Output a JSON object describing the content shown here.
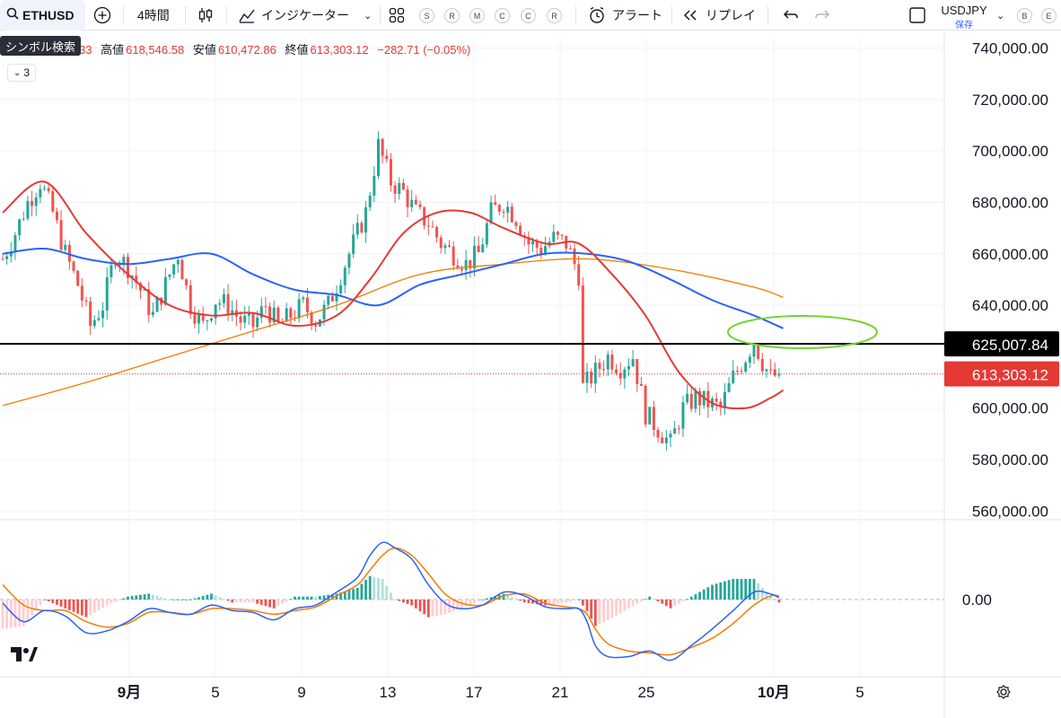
{
  "toolbar": {
    "symbol": "ETHUSD",
    "interval": "4時間",
    "indicators_label": "インジケーター",
    "study_badges": [
      "S",
      "R",
      "M",
      "C",
      "C",
      "R"
    ],
    "alert_label": "アラート",
    "replay_label": "リプレイ",
    "right_symbol": "USDJPY",
    "right_save_label": "保存",
    "right_badges": [
      "B",
      "E"
    ]
  },
  "tooltip": "シンボル検索",
  "legend": {
    "open_tail": "33",
    "high_label": "高値",
    "high": "618,546.58",
    "low_label": "安値",
    "low": "610,472.86",
    "close_label": "終値",
    "close": "613,303.12",
    "change": "−282.71 (−0.05%)",
    "collapsed_count": "3"
  },
  "chart_data": {
    "type": "candlestick",
    "title": "",
    "interval": "4時間",
    "y_ticks": [
      740000,
      720000,
      700000,
      680000,
      660000,
      640000,
      600000,
      580000,
      560000
    ],
    "y_tick_labels": [
      "740,000.00",
      "720,000.00",
      "700,000.00",
      "680,000.00",
      "660,000.00",
      "640,000.00",
      "600,000.00",
      "580,000.00",
      "560,000.00"
    ],
    "ylim": [
      557000,
      744000
    ],
    "x_tick_labels": [
      "9月",
      "5",
      "9",
      "13",
      "17",
      "21",
      "25",
      "10月",
      "5"
    ],
    "x_tick_bold": [
      true,
      false,
      false,
      false,
      false,
      false,
      false,
      true,
      false
    ],
    "horizontal_line": {
      "value": 625007.84,
      "label": "625,007.84",
      "color": "#000000"
    },
    "last_price": {
      "value": 613303.12,
      "label": "613,303.12",
      "color": "#e53935"
    },
    "close_path": [
      [
        0,
        658000
      ],
      [
        3,
        668000
      ],
      [
        6,
        680000
      ],
      [
        9,
        688000
      ],
      [
        12,
        676000
      ],
      [
        15,
        660000
      ],
      [
        18,
        648000
      ],
      [
        21,
        632000
      ],
      [
        24,
        640000
      ],
      [
        27,
        660000
      ],
      [
        30,
        655000
      ],
      [
        33,
        646000
      ],
      [
        36,
        636000
      ],
      [
        39,
        648000
      ],
      [
        42,
        660000
      ],
      [
        45,
        640000
      ],
      [
        48,
        632000
      ],
      [
        51,
        642000
      ],
      [
        54,
        640000
      ],
      [
        57,
        634000
      ],
      [
        60,
        632000
      ],
      [
        63,
        640000
      ],
      [
        66,
        632000
      ],
      [
        69,
        636000
      ],
      [
        72,
        640000
      ],
      [
        75,
        634000
      ],
      [
        78,
        640000
      ],
      [
        81,
        652000
      ],
      [
        84,
        664000
      ],
      [
        87,
        676000
      ],
      [
        90,
        702000
      ],
      [
        93,
        688000
      ],
      [
        96,
        684000
      ],
      [
        99,
        676000
      ],
      [
        102,
        672000
      ],
      [
        105,
        664000
      ],
      [
        108,
        660000
      ],
      [
        111,
        656000
      ],
      [
        114,
        660000
      ],
      [
        117,
        676000
      ],
      [
        120,
        680000
      ],
      [
        123,
        674000
      ],
      [
        126,
        664000
      ],
      [
        129,
        662000
      ],
      [
        132,
        666000
      ],
      [
        135,
        664000
      ],
      [
        138,
        652000
      ],
      [
        139,
        608000
      ],
      [
        142,
        614000
      ],
      [
        145,
        620000
      ],
      [
        148,
        616000
      ],
      [
        151,
        620000
      ],
      [
        154,
        598000
      ],
      [
        157,
        592000
      ],
      [
        160,
        586000
      ],
      [
        163,
        600000
      ],
      [
        166,
        604000
      ],
      [
        169,
        602000
      ],
      [
        172,
        600000
      ],
      [
        175,
        612000
      ],
      [
        178,
        620000
      ],
      [
        180,
        626000
      ],
      [
        182,
        618000
      ],
      [
        184,
        612000
      ],
      [
        186,
        613300
      ]
    ],
    "ma_red": [
      [
        0,
        676000
      ],
      [
        10,
        688000
      ],
      [
        20,
        668000
      ],
      [
        30,
        652000
      ],
      [
        40,
        640000
      ],
      [
        50,
        636000
      ],
      [
        60,
        637000
      ],
      [
        70,
        632000
      ],
      [
        80,
        636000
      ],
      [
        88,
        650000
      ],
      [
        96,
        668000
      ],
      [
        104,
        676000
      ],
      [
        112,
        676000
      ],
      [
        120,
        670000
      ],
      [
        130,
        664000
      ],
      [
        138,
        664000
      ],
      [
        146,
        652000
      ],
      [
        154,
        636000
      ],
      [
        162,
        614000
      ],
      [
        170,
        602000
      ],
      [
        178,
        600000
      ],
      [
        184,
        604000
      ],
      [
        187,
        607000
      ]
    ],
    "ma_blue": [
      [
        0,
        660000
      ],
      [
        10,
        662000
      ],
      [
        20,
        658000
      ],
      [
        30,
        656000
      ],
      [
        40,
        658000
      ],
      [
        50,
        660000
      ],
      [
        60,
        652000
      ],
      [
        70,
        646000
      ],
      [
        80,
        644000
      ],
      [
        90,
        640000
      ],
      [
        100,
        648000
      ],
      [
        110,
        652000
      ],
      [
        120,
        656000
      ],
      [
        130,
        660000
      ],
      [
        140,
        660000
      ],
      [
        150,
        657000
      ],
      [
        160,
        650000
      ],
      [
        170,
        642000
      ],
      [
        180,
        636000
      ],
      [
        187,
        631000
      ]
    ],
    "ma_orange": [
      [
        0,
        601000
      ],
      [
        20,
        610000
      ],
      [
        40,
        620000
      ],
      [
        60,
        630000
      ],
      [
        80,
        640000
      ],
      [
        100,
        652000
      ],
      [
        120,
        656000
      ],
      [
        140,
        658000
      ],
      [
        160,
        654000
      ],
      [
        180,
        647000
      ],
      [
        187,
        643000
      ]
    ],
    "series_colors": {
      "red": "#e53935",
      "blue": "#2962ff",
      "orange": "#f57c00",
      "candle_up": "#26a69a",
      "candle_down": "#ef5350"
    },
    "annotation": {
      "type": "ellipse",
      "color": "#76d436"
    },
    "macd": {
      "zero_label": "0.00",
      "macd_line": [
        [
          0,
          -2
        ],
        [
          5,
          -12
        ],
        [
          10,
          -6
        ],
        [
          15,
          -9
        ],
        [
          20,
          -18
        ],
        [
          25,
          -17
        ],
        [
          30,
          -12
        ],
        [
          35,
          -5
        ],
        [
          40,
          -7
        ],
        [
          45,
          -8
        ],
        [
          50,
          -3
        ],
        [
          55,
          -6
        ],
        [
          60,
          -7
        ],
        [
          65,
          -11
        ],
        [
          70,
          -5
        ],
        [
          75,
          -3
        ],
        [
          80,
          4
        ],
        [
          85,
          12
        ],
        [
          88,
          24
        ],
        [
          91,
          31
        ],
        [
          94,
          28
        ],
        [
          98,
          22
        ],
        [
          102,
          8
        ],
        [
          106,
          -2
        ],
        [
          110,
          -5
        ],
        [
          115,
          -3
        ],
        [
          120,
          4
        ],
        [
          125,
          2
        ],
        [
          130,
          -4
        ],
        [
          135,
          -5
        ],
        [
          138,
          -5
        ],
        [
          140,
          -12
        ],
        [
          142,
          -25
        ],
        [
          145,
          -31
        ],
        [
          150,
          -31
        ],
        [
          155,
          -28
        ],
        [
          160,
          -33
        ],
        [
          165,
          -25
        ],
        [
          170,
          -16
        ],
        [
          175,
          -6
        ],
        [
          180,
          4
        ],
        [
          184,
          3
        ],
        [
          186,
          1
        ]
      ],
      "signal_line": [
        [
          0,
          8
        ],
        [
          5,
          -3
        ],
        [
          10,
          -6
        ],
        [
          15,
          -6
        ],
        [
          20,
          -12
        ],
        [
          25,
          -15
        ],
        [
          30,
          -13
        ],
        [
          35,
          -7
        ],
        [
          40,
          -7
        ],
        [
          45,
          -8
        ],
        [
          50,
          -5
        ],
        [
          55,
          -5
        ],
        [
          60,
          -6
        ],
        [
          65,
          -8
        ],
        [
          70,
          -6
        ],
        [
          75,
          -4
        ],
        [
          80,
          2
        ],
        [
          85,
          8
        ],
        [
          88,
          16
        ],
        [
          91,
          24
        ],
        [
          94,
          28
        ],
        [
          98,
          24
        ],
        [
          102,
          14
        ],
        [
          106,
          3
        ],
        [
          110,
          -2
        ],
        [
          115,
          -3
        ],
        [
          120,
          2
        ],
        [
          125,
          3
        ],
        [
          130,
          -2
        ],
        [
          135,
          -4
        ],
        [
          138,
          -5
        ],
        [
          140,
          -8
        ],
        [
          142,
          -16
        ],
        [
          145,
          -24
        ],
        [
          150,
          -28
        ],
        [
          155,
          -29
        ],
        [
          160,
          -30
        ],
        [
          165,
          -26
        ],
        [
          170,
          -21
        ],
        [
          175,
          -13
        ],
        [
          180,
          -3
        ],
        [
          184,
          2
        ],
        [
          186,
          2
        ]
      ]
    }
  }
}
